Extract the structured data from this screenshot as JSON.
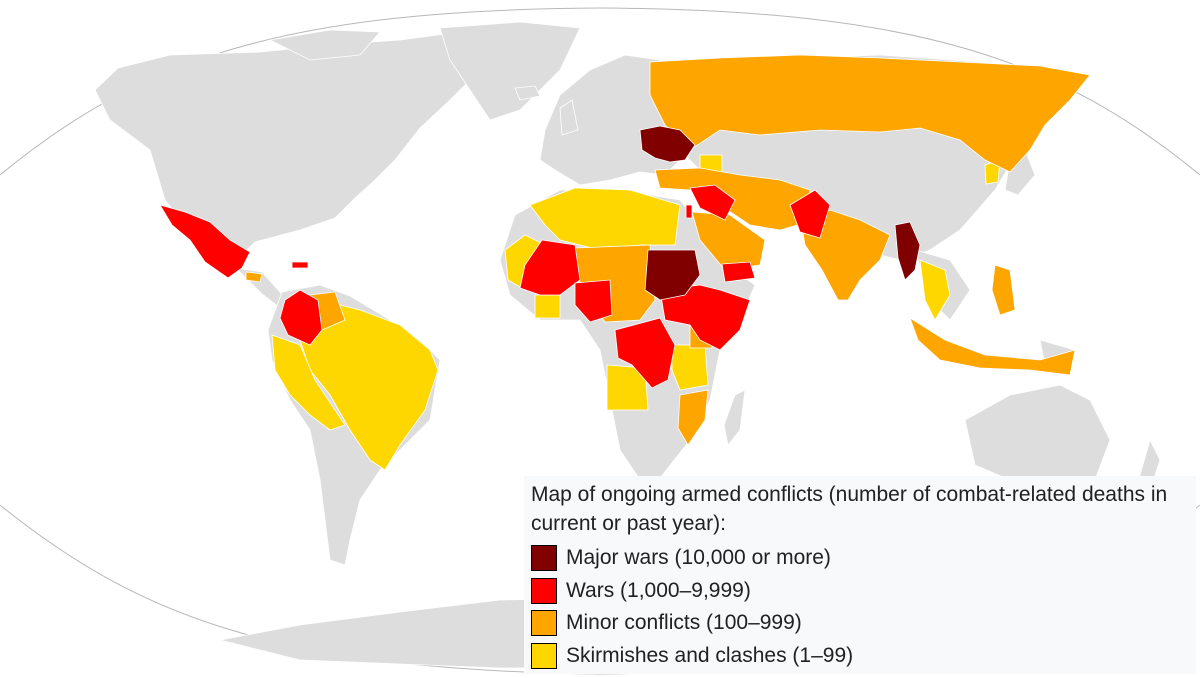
{
  "legend": {
    "title": "Map of ongoing armed conflicts (number of combat-related deaths in current or past year):",
    "items": [
      {
        "label": "Major wars (10,000 or more)",
        "color": "#800000"
      },
      {
        "label": "Wars (1,000–9,999)",
        "color": "#ff0000"
      },
      {
        "label": "Minor conflicts (100–999)",
        "color": "#ffa500"
      },
      {
        "label": "Skirmishes and clashes (1–99)",
        "color": "#ffd700"
      }
    ]
  },
  "colors": {
    "land": "#dddddd",
    "ocean": "#ffffff",
    "border": "#ffffff",
    "globe_outline": "#b8b8b8",
    "major_wars": "#800000",
    "wars": "#ff0000",
    "minor_conflicts": "#ffa500",
    "skirmishes": "#ffd700"
  },
  "regions": {
    "major_wars": [
      "Ukraine",
      "Sudan",
      "Myanmar"
    ],
    "wars": [
      "Mexico",
      "Colombia",
      "Haiti",
      "Mali",
      "Burkina Faso",
      "Nigeria",
      "DR Congo",
      "Ethiopia",
      "South Sudan",
      "Somalia",
      "Yemen",
      "Syria",
      "Iraq",
      "Pakistan",
      "Israel"
    ],
    "minor_conflicts": [
      "Russia",
      "Turkey",
      "Iran",
      "Afghanistan",
      "Saudi Arabia",
      "India",
      "Niger",
      "Chad",
      "Cameroon",
      "Central African Republic",
      "Kenya",
      "Mozambique",
      "Venezuela",
      "Philippines",
      "Indonesia",
      "Papua New Guinea",
      "Honduras"
    ],
    "skirmishes": [
      "Brazil",
      "Peru",
      "Ecuador",
      "Bolivia",
      "Algeria",
      "Libya",
      "Egypt",
      "Morocco",
      "Western Sahara",
      "Mauritania",
      "Angola",
      "Tanzania",
      "Thailand",
      "North Korea",
      "Armenia",
      "Azerbaijan"
    ]
  }
}
